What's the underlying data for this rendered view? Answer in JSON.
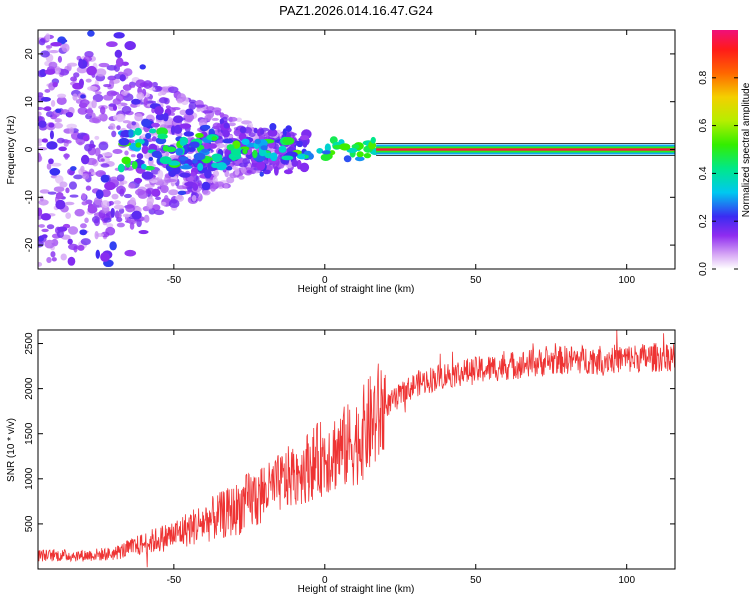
{
  "title": "PAZ1.2026.014.16.47.G24",
  "chart_data": [
    {
      "type": "heatmap",
      "name": "spectrogram",
      "xlabel": "Height of straight line (km)",
      "ylabel": "Frequency (Hz)",
      "xlim": [
        -95,
        116
      ],
      "ylim": [
        -25,
        25
      ],
      "xticks": [
        -50,
        0,
        50,
        100
      ],
      "yticks": [
        -20,
        -10,
        0,
        10,
        20
      ],
      "colorbar": {
        "label": "Normalized spectral amplitude",
        "range": [
          0,
          1
        ],
        "ticks": [
          0.0,
          0.2,
          0.4,
          0.6,
          0.8
        ],
        "tick_labels": [
          "0.0",
          "0.2",
          "0.4",
          "0.6",
          "0.8"
        ]
      },
      "features": {
        "carrier_line_start_km": 17,
        "carrier_frequency_hz": 0,
        "carrier_amplitude": 0.95,
        "scatter_region_km": [
          -95,
          -20
        ],
        "scatter_frequency_spread_hz": 25
      }
    },
    {
      "type": "line",
      "name": "snr",
      "xlabel": "Height of straight line (km)",
      "ylabel": "SNR (10 * v/v)",
      "xlim": [
        -95,
        116
      ],
      "ylim": [
        0,
        2650
      ],
      "xticks": [
        -50,
        0,
        50,
        100
      ],
      "yticks": [
        500,
        1000,
        1500,
        2000,
        2500
      ],
      "series": [
        {
          "name": "SNR",
          "color": "#ee3333",
          "trend_x": [
            -95,
            -80,
            -70,
            -60,
            -50,
            -40,
            -30,
            -20,
            -10,
            0,
            10,
            20,
            30,
            40,
            60,
            80,
            100,
            116
          ],
          "trend_y": [
            150,
            150,
            170,
            280,
            380,
            520,
            650,
            850,
            1050,
            1250,
            1400,
            1800,
            2050,
            2150,
            2250,
            2320,
            2330,
            2360
          ]
        }
      ]
    }
  ]
}
